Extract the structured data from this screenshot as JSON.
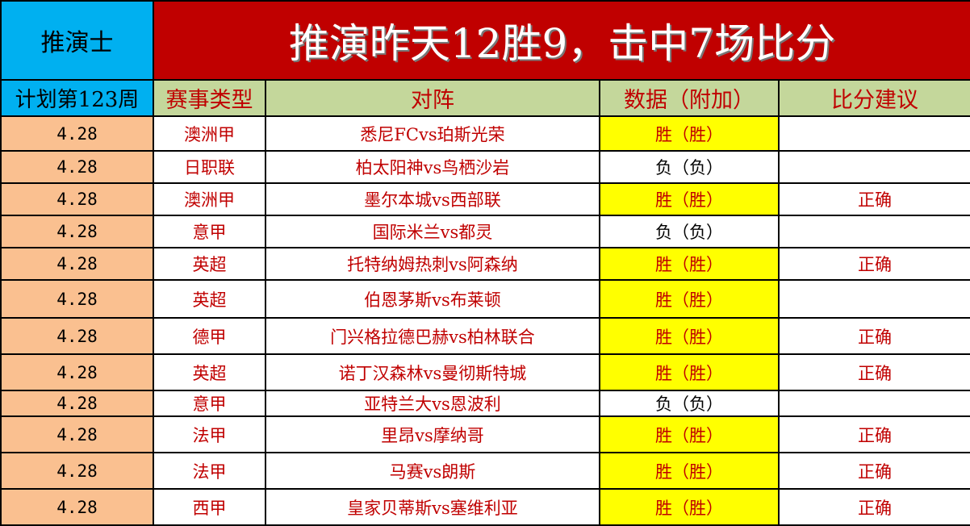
{
  "header": {
    "brand": "推演士",
    "title": "推演昨天12胜9，击中7场比分"
  },
  "columns": {
    "plan": "计划第123周",
    "league": "赛事类型",
    "match": "对阵",
    "data": "数据（附加）",
    "score": "比分建议"
  },
  "colors": {
    "brand_bg": "#00b0f0",
    "title_bg": "#c00000",
    "header_bg": "#c4d79b",
    "date_bg": "#fac090",
    "highlight": "#ffff00"
  },
  "rows": [
    {
      "date": "4.28",
      "league": "澳洲甲",
      "match": "悉尼FCvs珀斯光荣",
      "data": "胜（胜）",
      "score": "",
      "win": true
    },
    {
      "date": "4.28",
      "league": "日职联",
      "match": "柏太阳神vs鸟栖沙岩",
      "data": "负（负）",
      "score": "",
      "win": false
    },
    {
      "date": "4.28",
      "league": "澳洲甲",
      "match": "墨尔本城vs西部联",
      "data": "胜（胜）",
      "score": "正确",
      "win": true
    },
    {
      "date": "4.28",
      "league": "意甲",
      "match": "国际米兰vs都灵",
      "data": "负（负）",
      "score": "",
      "win": false
    },
    {
      "date": "4.28",
      "league": "英超",
      "match": "托特纳姆热刺vs阿森纳",
      "data": "胜（胜）",
      "score": "正确",
      "win": true
    },
    {
      "date": "4.28",
      "league": "英超",
      "match": "伯恩茅斯vs布莱顿",
      "data": "胜（胜）",
      "score": "",
      "win": true
    },
    {
      "date": "4.28",
      "league": "德甲",
      "match": "门兴格拉德巴赫vs柏林联合",
      "data": "胜（胜）",
      "score": "正确",
      "win": true
    },
    {
      "date": "4.28",
      "league": "英超",
      "match": "诺丁汉森林vs曼彻斯特城",
      "data": "胜（胜）",
      "score": "正确",
      "win": true
    },
    {
      "date": "4.28",
      "league": "意甲",
      "match": "亚特兰大vs恩波利",
      "data": "负（负）",
      "score": "",
      "win": false
    },
    {
      "date": "4.28",
      "league": "法甲",
      "match": "里昂vs摩纳哥",
      "data": "胜（胜）",
      "score": "正确",
      "win": true
    },
    {
      "date": "4.28",
      "league": "法甲",
      "match": "马赛vs朗斯",
      "data": "胜（胜）",
      "score": "正确",
      "win": true
    },
    {
      "date": "4.28",
      "league": "西甲",
      "match": "皇家贝蒂斯vs塞维利亚",
      "data": "胜（胜）",
      "score": "正确",
      "win": true
    }
  ]
}
